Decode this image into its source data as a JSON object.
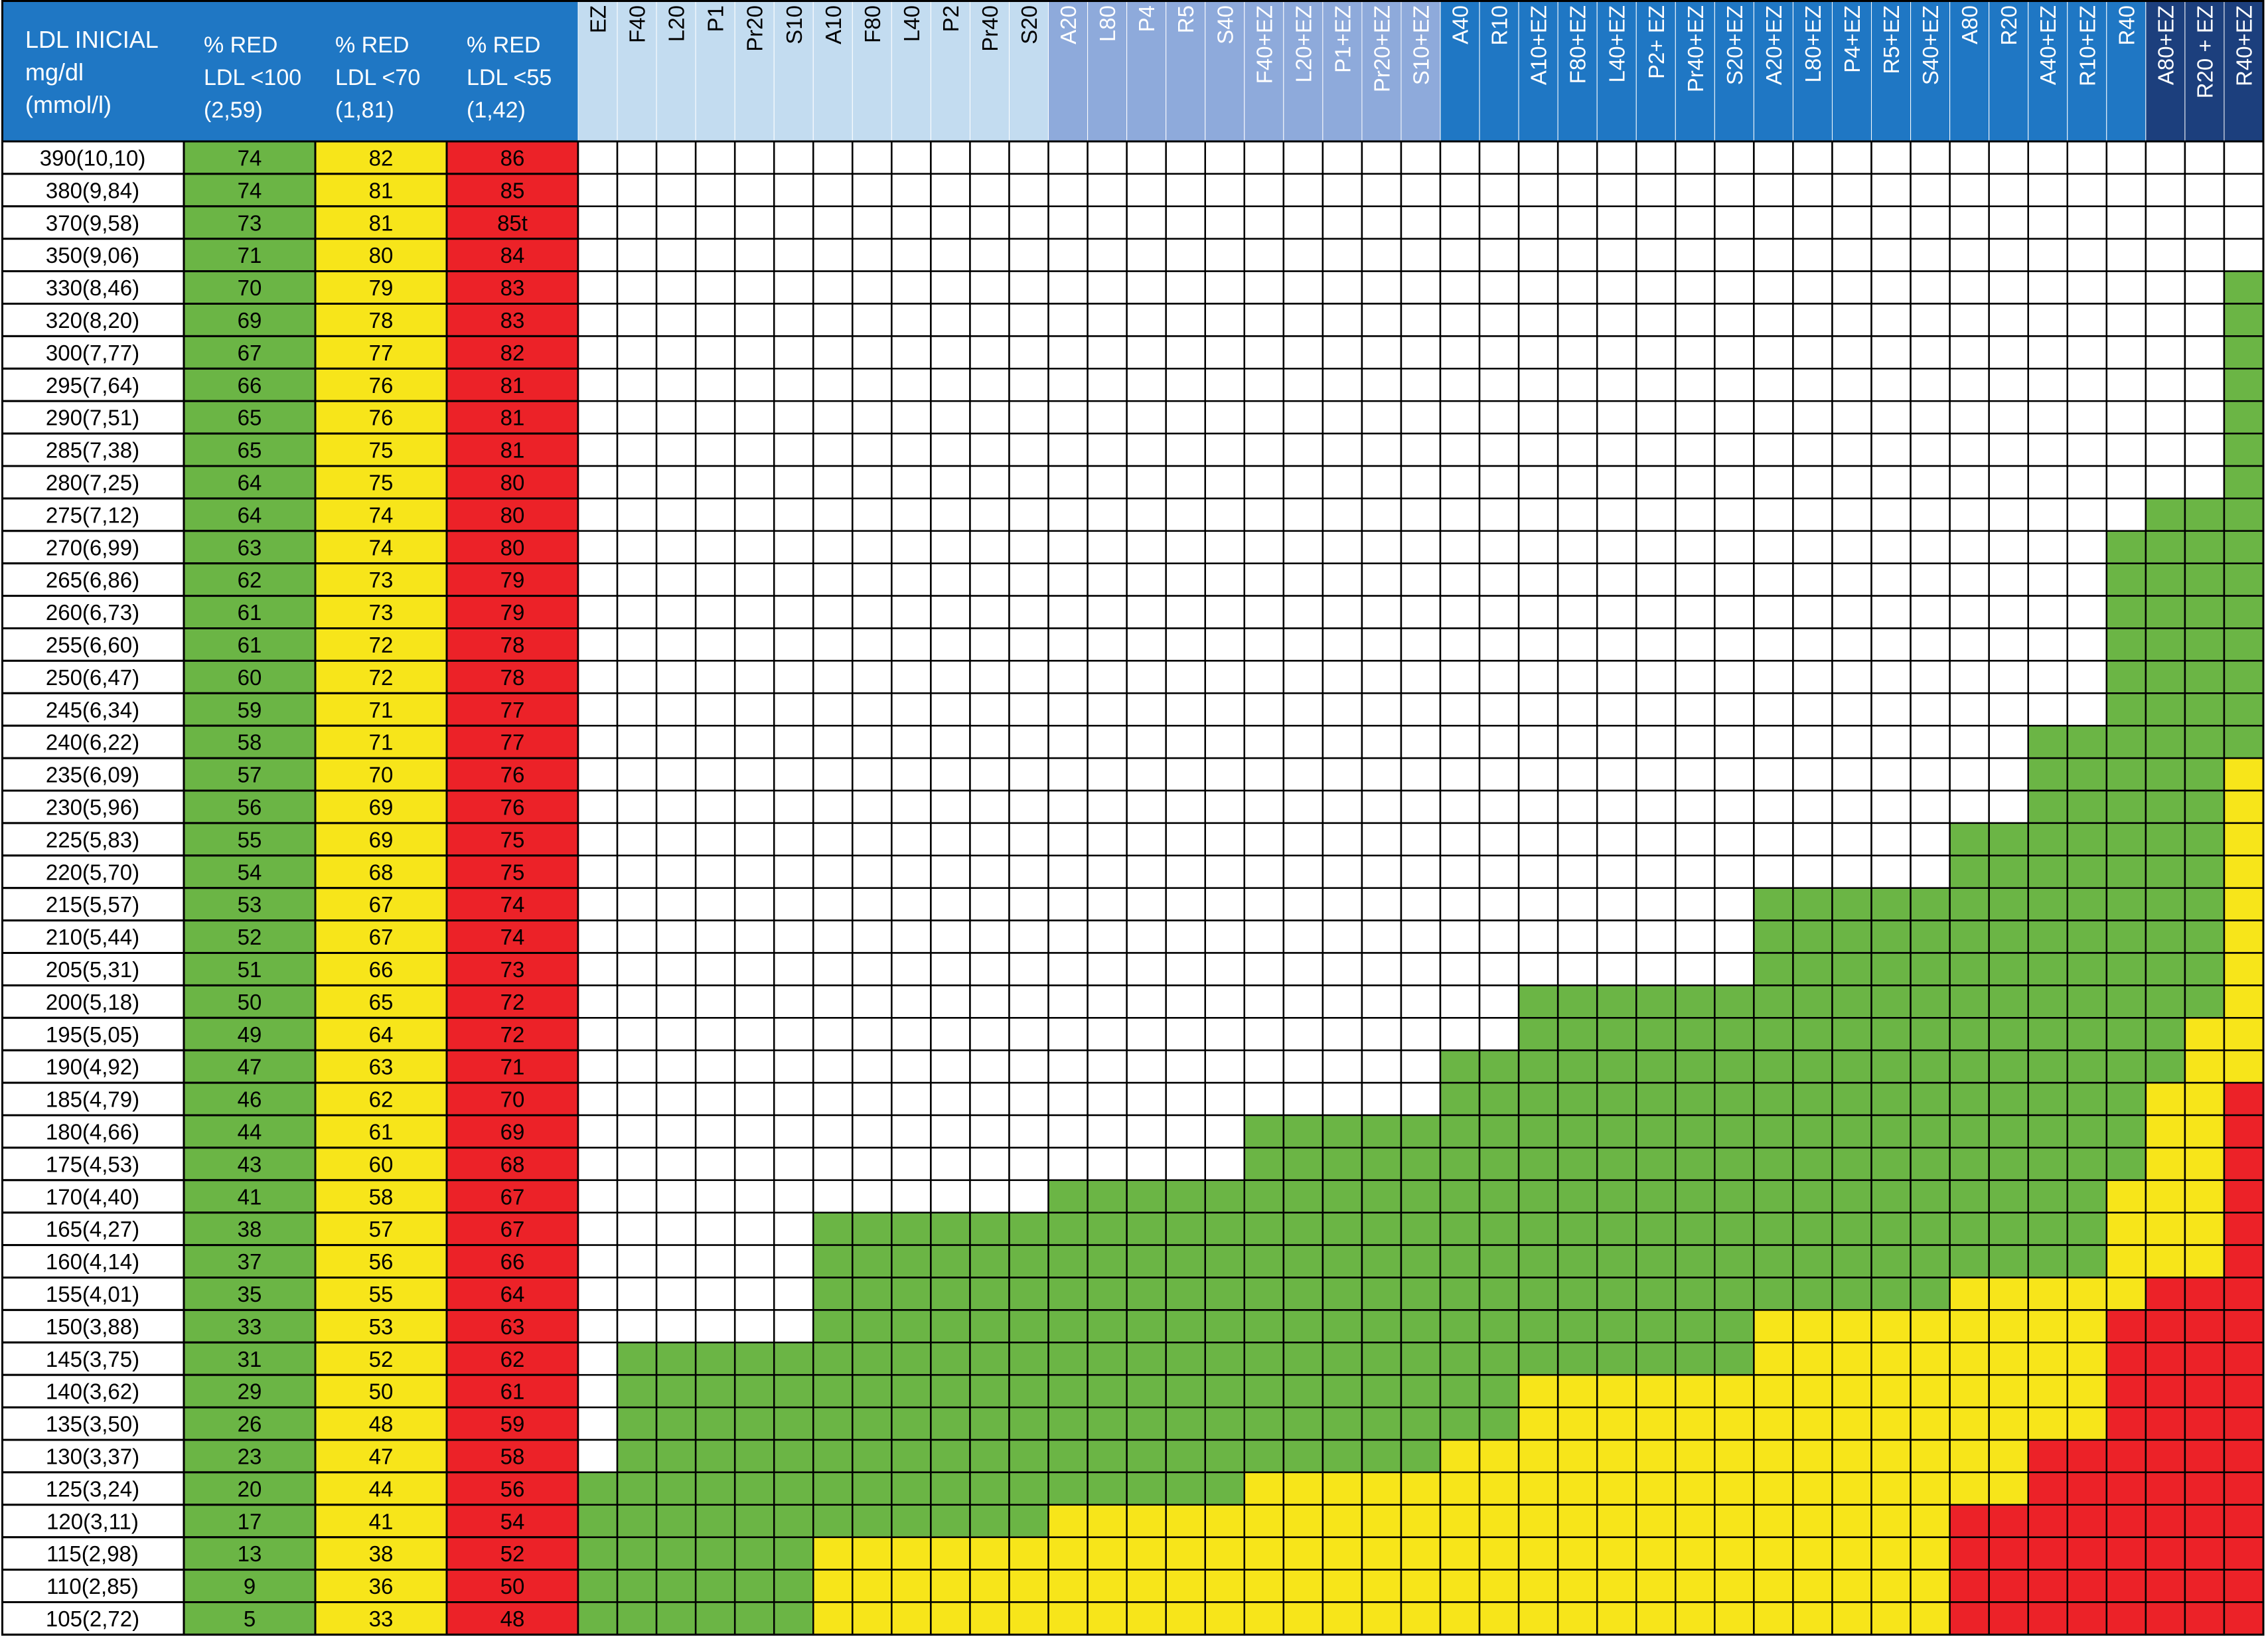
{
  "colors": {
    "header_blue": "#1f77c4",
    "header_light": "#c3dcf0",
    "header_mid": "#8eaadb",
    "header_dark": "#1c3f7d",
    "green": "#6bb545",
    "yellow": "#f7e51a",
    "red": "#ec2228",
    "white": "#ffffff",
    "border": "#000000"
  },
  "header": {
    "col0": [
      "LDL INICIAL",
      "mg/dl",
      "(mmol/l)"
    ],
    "col1": [
      "% RED",
      "LDL <100",
      "(2,59)"
    ],
    "col2": [
      "% RED",
      "LDL <70",
      "(1,81)"
    ],
    "col3": [
      "% RED",
      "LDL <55",
      "(1,42)"
    ]
  },
  "chart_data": {
    "type": "table",
    "treatments": [
      "EZ",
      "F40",
      "L20",
      "P1",
      "Pr20",
      "S10",
      "A10",
      "F80",
      "L40",
      "P2",
      "Pr40",
      "S20",
      "A20",
      "L80",
      "P4",
      "R5",
      "S40",
      "F40+EZ",
      "L20+EZ",
      "P1+EZ",
      "Pr20+EZ",
      "S10+EZ",
      "A40",
      "R10",
      "A10+EZ",
      "F80+EZ",
      "L40+EZ",
      "P2+ EZ",
      "Pr40+EZ",
      "S20+EZ",
      "A20+EZ",
      "L80+EZ",
      "P4+EZ",
      "R5+EZ",
      "S40+EZ",
      "A80",
      "R20",
      "A40+EZ",
      "R10+EZ",
      "R40",
      "A80+EZ",
      "R20 + EZ",
      "R40+EZ"
    ],
    "treatment_header_shade": [
      "light",
      "light",
      "light",
      "light",
      "light",
      "light",
      "light",
      "light",
      "light",
      "light",
      "light",
      "light",
      "mid",
      "mid",
      "mid",
      "mid",
      "mid",
      "mid",
      "mid",
      "mid",
      "mid",
      "mid",
      "blue",
      "blue",
      "blue",
      "blue",
      "blue",
      "blue",
      "blue",
      "blue",
      "blue",
      "blue",
      "blue",
      "blue",
      "blue",
      "blue",
      "blue",
      "blue",
      "blue",
      "blue",
      "dark",
      "dark",
      "dark"
    ],
    "rows": [
      {
        "ldl": "390(10,10)",
        "r100": "74",
        "r70": "82",
        "r55": "86",
        "cells": "WWWWWWWWWWWWWWWWWWWWWWWWWWWWWWWWWWWWWWWWWWW"
      },
      {
        "ldl": "380(9,84)",
        "r100": "74",
        "r70": "81",
        "r55": "85",
        "cells": "WWWWWWWWWWWWWWWWWWWWWWWWWWWWWWWWWWWWWWWWWWW"
      },
      {
        "ldl": "370(9,58)",
        "r100": "73",
        "r70": "81",
        "r55": "85t",
        "cells": "WWWWWWWWWWWWWWWWWWWWWWWWWWWWWWWWWWWWWWWWWWW"
      },
      {
        "ldl": "350(9,06)",
        "r100": "71",
        "r70": "80",
        "r55": "84",
        "cells": "WWWWWWWWWWWWWWWWWWWWWWWWWWWWWWWWWWWWWWWWWWW"
      },
      {
        "ldl": "330(8,46)",
        "r100": "70",
        "r70": "79",
        "r55": "83",
        "cells": "WWWWWWWWWWWWWWWWWWWWWWWWWWWWWWWWWWWWWWWWWWG"
      },
      {
        "ldl": "320(8,20)",
        "r100": "69",
        "r70": "78",
        "r55": "83",
        "cells": "WWWWWWWWWWWWWWWWWWWWWWWWWWWWWWWWWWWWWWWWWWG"
      },
      {
        "ldl": "300(7,77)",
        "r100": "67",
        "r70": "77",
        "r55": "82",
        "cells": "WWWWWWWWWWWWWWWWWWWWWWWWWWWWWWWWWWWWWWWWWWG"
      },
      {
        "ldl": "295(7,64)",
        "r100": "66",
        "r70": "76",
        "r55": "81",
        "cells": "WWWWWWWWWWWWWWWWWWWWWWWWWWWWWWWWWWWWWWWWWWG"
      },
      {
        "ldl": "290(7,51)",
        "r100": "65",
        "r70": "76",
        "r55": "81",
        "cells": "WWWWWWWWWWWWWWWWWWWWWWWWWWWWWWWWWWWWWWWWWWG"
      },
      {
        "ldl": "285(7,38)",
        "r100": "65",
        "r70": "75",
        "r55": "81",
        "cells": "WWWWWWWWWWWWWWWWWWWWWWWWWWWWWWWWWWWWWWWWWWG"
      },
      {
        "ldl": "280(7,25)",
        "r100": "64",
        "r70": "75",
        "r55": "80",
        "cells": "WWWWWWWWWWWWWWWWWWWWWWWWWWWWWWWWWWWWWWWWWWG"
      },
      {
        "ldl": "275(7,12)",
        "r100": "64",
        "r70": "74",
        "r55": "80",
        "cells": "WWWWWWWWWWWWWWWWWWWWWWWWWWWWWWWWWWWWWWWWGGG"
      },
      {
        "ldl": "270(6,99)",
        "r100": "63",
        "r70": "74",
        "r55": "80",
        "cells": "WWWWWWWWWWWWWWWWWWWWWWWWWWWWWWWWWWWWWWWGGGG"
      },
      {
        "ldl": "265(6,86)",
        "r100": "62",
        "r70": "73",
        "r55": "79",
        "cells": "WWWWWWWWWWWWWWWWWWWWWWWWWWWWWWWWWWWWWWWGGGG"
      },
      {
        "ldl": "260(6,73)",
        "r100": "61",
        "r70": "73",
        "r55": "79",
        "cells": "WWWWWWWWWWWWWWWWWWWWWWWWWWWWWWWWWWWWWWWGGGG"
      },
      {
        "ldl": "255(6,60)",
        "r100": "61",
        "r70": "72",
        "r55": "78",
        "cells": "WWWWWWWWWWWWWWWWWWWWWWWWWWWWWWWWWWWWWWWGGGG"
      },
      {
        "ldl": "250(6,47)",
        "r100": "60",
        "r70": "72",
        "r55": "78",
        "cells": "WWWWWWWWWWWWWWWWWWWWWWWWWWWWWWWWWWWWWWWGGGG"
      },
      {
        "ldl": "245(6,34)",
        "r100": "59",
        "r70": "71",
        "r55": "77",
        "cells": "WWWWWWWWWWWWWWWWWWWWWWWWWWWWWWWWWWWWWWWGGGG"
      },
      {
        "ldl": "240(6,22)",
        "r100": "58",
        "r70": "71",
        "r55": "77",
        "cells": "WWWWWWWWWWWWWWWWWWWWWWWWWWWWWWWWWWWWWGGGGGG"
      },
      {
        "ldl": "235(6,09)",
        "r100": "57",
        "r70": "70",
        "r55": "76",
        "cells": "WWWWWWWWWWWWWWWWWWWWWWWWWWWWWWWWWWWWWGGGGGY"
      },
      {
        "ldl": "230(5,96)",
        "r100": "56",
        "r70": "69",
        "r55": "76",
        "cells": "WWWWWWWWWWWWWWWWWWWWWWWWWWWWWWWWWWWWWGGGGGY"
      },
      {
        "ldl": "225(5,83)",
        "r100": "55",
        "r70": "69",
        "r55": "75",
        "cells": "WWWWWWWWWWWWWWWWWWWWWWWWWWWWWWWWWWWGGGGGGGY"
      },
      {
        "ldl": "220(5,70)",
        "r100": "54",
        "r70": "68",
        "r55": "75",
        "cells": "WWWWWWWWWWWWWWWWWWWWWWWWWWWWWWWWWWWGGGGGGGY"
      },
      {
        "ldl": "215(5,57)",
        "r100": "53",
        "r70": "67",
        "r55": "74",
        "cells": "WWWWWWWWWWWWWWWWWWWWWWWWWWWWWWGGGGGGGGGGGGY"
      },
      {
        "ldl": "210(5,44)",
        "r100": "52",
        "r70": "67",
        "r55": "74",
        "cells": "WWWWWWWWWWWWWWWWWWWWWWWWWWWWWWGGGGGGGGGGGGY"
      },
      {
        "ldl": "205(5,31)",
        "r100": "51",
        "r70": "66",
        "r55": "73",
        "cells": "WWWWWWWWWWWWWWWWWWWWWWWWWWWWWWGGGGGGGGGGGGY"
      },
      {
        "ldl": "200(5,18)",
        "r100": "50",
        "r70": "65",
        "r55": "72",
        "cells": "WWWWWWWWWWWWWWWWWWWWWWWWGGGGGGGGGGGGGGGGGGY"
      },
      {
        "ldl": "195(5,05)",
        "r100": "49",
        "r70": "64",
        "r55": "72",
        "cells": "WWWWWWWWWWWWWWWWWWWWWWWWGGGGGGGGGGGGGGGGGYY"
      },
      {
        "ldl": "190(4,92)",
        "r100": "47",
        "r70": "63",
        "r55": "71",
        "cells": "WWWWWWWWWWWWWWWWWWWWWWGGGGGGGGGGGGGGGGGGGYY"
      },
      {
        "ldl": "185(4,79)",
        "r100": "46",
        "r70": "62",
        "r55": "70",
        "cells": "WWWWWWWWWWWWWWWWWWWWWWGGGGGGGGGGGGGGGGGGYYR"
      },
      {
        "ldl": "180(4,66)",
        "r100": "44",
        "r70": "61",
        "r55": "69",
        "cells": "WWWWWWWWWWWWWWWWWGGGGGGGGGGGGGGGGGGGGGGGYYR"
      },
      {
        "ldl": "175(4,53)",
        "r100": "43",
        "r70": "60",
        "r55": "68",
        "cells": "WWWWWWWWWWWWWWWWWGGGGGGGGGGGGGGGGGGGGGGGYYR"
      },
      {
        "ldl": "170(4,40)",
        "r100": "41",
        "r70": "58",
        "r55": "67",
        "cells": "WWWWWWWWWWWWGGGGGGGGGGGGGGGGGGGGGGGGGGGYYYR"
      },
      {
        "ldl": "165(4,27)",
        "r100": "38",
        "r70": "57",
        "r55": "67",
        "cells": "WWWWWWGGGGGGGGGGGGGGGGGGGGGGGGGGGGGGGGGYYYR"
      },
      {
        "ldl": "160(4,14)",
        "r100": "37",
        "r70": "56",
        "r55": "66",
        "cells": "WWWWWWGGGGGGGGGGGGGGGGGGGGGGGGGGGGGGGGGYYYR"
      },
      {
        "ldl": "155(4,01)",
        "r100": "35",
        "r70": "55",
        "r55": "64",
        "cells": "WWWWWWGGGGGGGGGGGGGGGGGGGGGGGGGGGGGYYYYYRRR"
      },
      {
        "ldl": "150(3,88)",
        "r100": "33",
        "r70": "53",
        "r55": "63",
        "cells": "WWWWWWGGGGGGGGGGGGGGGGGGGGGGGGYYYYYYYYYRRRR"
      },
      {
        "ldl": "145(3,75)",
        "r100": "31",
        "r70": "52",
        "r55": "62",
        "cells": "WGGGGGGGGGGGGGGGGGGGGGGGGGGGGGYYYYYYYYYRRRR"
      },
      {
        "ldl": "140(3,62)",
        "r100": "29",
        "r70": "50",
        "r55": "61",
        "cells": "WGGGGGGGGGGGGGGGGGGGGGGGYYYYYYYYYYYYYYYRRRR"
      },
      {
        "ldl": "135(3,50)",
        "r100": "26",
        "r70": "48",
        "r55": "59",
        "cells": "WGGGGGGGGGGGGGGGGGGGGGGGYYYYYYYYYYYYYYYRRRR"
      },
      {
        "ldl": "130(3,37)",
        "r100": "23",
        "r70": "47",
        "r55": "58",
        "cells": "WGGGGGGGGGGGGGGGGGGGGGYYYYYYYYYYYYYYYRRRRRR"
      },
      {
        "ldl": "125(3,24)",
        "r100": "20",
        "r70": "44",
        "r55": "56",
        "cells": "GGGGGGGGGGGGGGGGGYYYYYYYYYYYYYYYYYYYYRRRRRR"
      },
      {
        "ldl": "120(3,11)",
        "r100": "17",
        "r70": "41",
        "r55": "54",
        "cells": "GGGGGGGGGGGGYYYYYYYYYYYYYYYYYYYYYYYRRRRRRRR"
      },
      {
        "ldl": "115(2,98)",
        "r100": "13",
        "r70": "38",
        "r55": "52",
        "cells": "GGGGGGYYYYYYYYYYYYYYYYYYYYYYYYYYYYYRRRRRRRR"
      },
      {
        "ldl": "110(2,85)",
        "r100": "9",
        "r70": "36",
        "r55": "50",
        "cells": "GGGGGGYYYYYYYYYYYYYYYYYYYYYYYYYYYYYRRRRRRRR"
      },
      {
        "ldl": "105(2,72)",
        "r100": "5",
        "r70": "33",
        "r55": "48",
        "cells": "GGGGGGYYYYYYYYYYYYYYYYYYYYYYYYYYYYYRRRRRRRR"
      }
    ]
  }
}
